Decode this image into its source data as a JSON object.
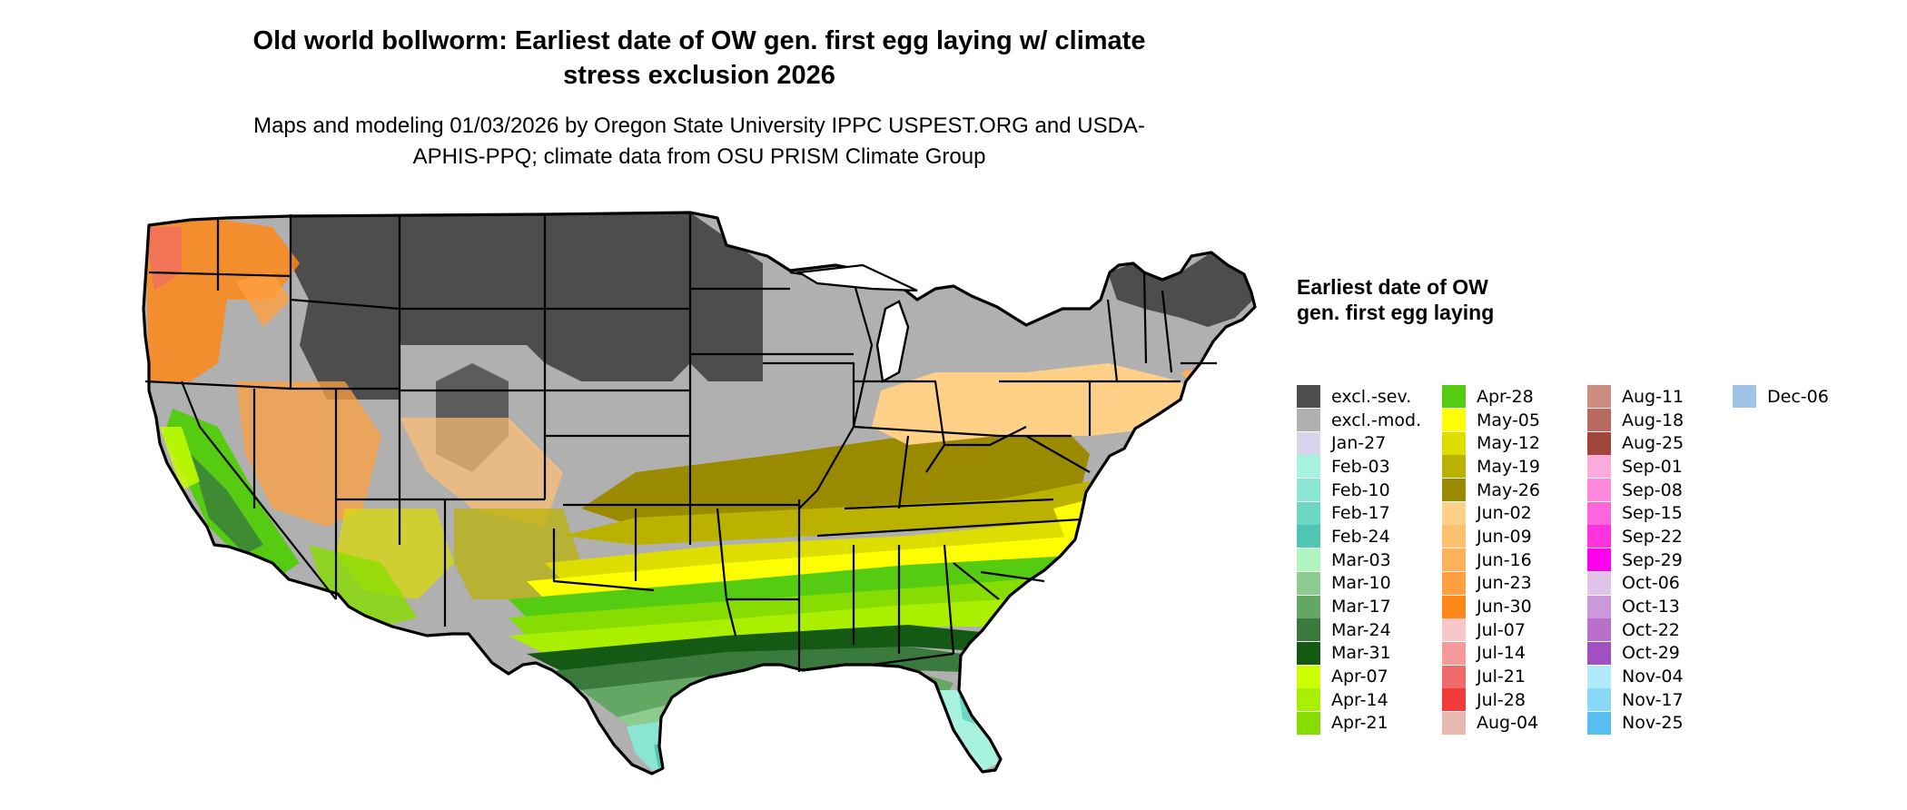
{
  "title": "Old world bollworm: Earliest date of OW gen. first egg laying w/ climate stress exclusion 2026",
  "subtitle": "Maps and modeling 01/03/2026 by Oregon State University IPPC USPEST.ORG and USDA-APHIS-PPQ; climate data from OSU PRISM Climate Group",
  "legend": {
    "title": "Earliest date of OW gen. first egg laying",
    "items": [
      {
        "label": "excl.-sev.",
        "color": "#4d4d4d"
      },
      {
        "label": "excl.-mod.",
        "color": "#b0b0b0"
      },
      {
        "label": "Jan-27",
        "color": "#d8d4ec"
      },
      {
        "label": "Feb-03",
        "color": "#a8f2e0"
      },
      {
        "label": "Feb-10",
        "color": "#8ae6d2"
      },
      {
        "label": "Feb-17",
        "color": "#6cd8c4"
      },
      {
        "label": "Feb-24",
        "color": "#52c6b2"
      },
      {
        "label": "Mar-03",
        "color": "#b0f5c0"
      },
      {
        "label": "Mar-10",
        "color": "#8ccc8e"
      },
      {
        "label": "Mar-17",
        "color": "#64a664"
      },
      {
        "label": "Mar-24",
        "color": "#3a7a3c"
      },
      {
        "label": "Mar-31",
        "color": "#145a14"
      },
      {
        "label": "Apr-07",
        "color": "#ccff00"
      },
      {
        "label": "Apr-14",
        "color": "#aaee00"
      },
      {
        "label": "Apr-21",
        "color": "#88dd00"
      },
      {
        "label": "Apr-28",
        "color": "#55cc11"
      },
      {
        "label": "May-05",
        "color": "#ffff00"
      },
      {
        "label": "May-12",
        "color": "#dddd00"
      },
      {
        "label": "May-19",
        "color": "#bbb200"
      },
      {
        "label": "May-26",
        "color": "#9a8a00"
      },
      {
        "label": "Jun-02",
        "color": "#ffd088"
      },
      {
        "label": "Jun-09",
        "color": "#ffc070"
      },
      {
        "label": "Jun-16",
        "color": "#ffb05a"
      },
      {
        "label": "Jun-23",
        "color": "#ffa040"
      },
      {
        "label": "Jun-30",
        "color": "#ff8818"
      },
      {
        "label": "Jul-07",
        "color": "#f8c8c8"
      },
      {
        "label": "Jul-14",
        "color": "#f49a9a"
      },
      {
        "label": "Jul-21",
        "color": "#f06a6a"
      },
      {
        "label": "Jul-28",
        "color": "#f23a3a"
      },
      {
        "label": "Aug-04",
        "color": "#e6b8b0"
      },
      {
        "label": "Aug-11",
        "color": "#cc8c80"
      },
      {
        "label": "Aug-18",
        "color": "#b86a5e"
      },
      {
        "label": "Aug-25",
        "color": "#a0453a"
      },
      {
        "label": "Sep-01",
        "color": "#ffaadd"
      },
      {
        "label": "Sep-08",
        "color": "#ff88dd"
      },
      {
        "label": "Sep-15",
        "color": "#ff66dd"
      },
      {
        "label": "Sep-22",
        "color": "#ff33dd"
      },
      {
        "label": "Sep-29",
        "color": "#ff00ee"
      },
      {
        "label": "Oct-06",
        "color": "#e0c4e8"
      },
      {
        "label": "Oct-13",
        "color": "#cc99dd"
      },
      {
        "label": "Oct-22",
        "color": "#b870cc"
      },
      {
        "label": "Oct-29",
        "color": "#a050c0"
      },
      {
        "label": "Nov-04",
        "color": "#b0eaff"
      },
      {
        "label": "Nov-17",
        "color": "#88d8f8"
      },
      {
        "label": "Nov-25",
        "color": "#58bff0"
      },
      {
        "label": "Dec-06",
        "color": "#a0c4e8"
      }
    ]
  }
}
